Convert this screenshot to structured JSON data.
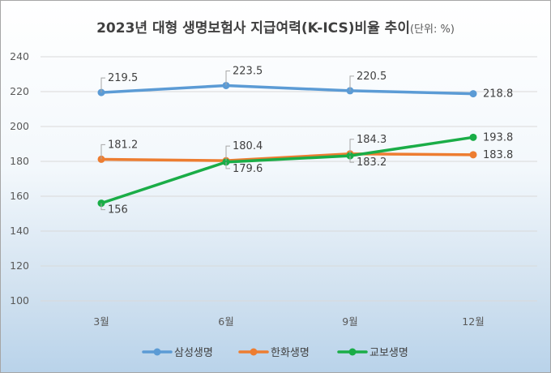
{
  "chart_data": {
    "type": "line",
    "title": "2023년 대형 생명보험사 지급여력(K-ICS)비율 추이",
    "title_unit": "(단위: %)",
    "categories": [
      "3월",
      "6월",
      "9월",
      "12월"
    ],
    "y_ticks": [
      "100",
      "120",
      "140",
      "160",
      "180",
      "200",
      "220",
      "240"
    ],
    "ylim": [
      100,
      240
    ],
    "grid": true,
    "legend_position": "bottom",
    "series": [
      {
        "name": "삼성생명",
        "color": "#5b9bd5",
        "values": [
          219.5,
          223.5,
          220.5,
          218.8
        ],
        "labels": [
          "219.5",
          "223.5",
          "220.5",
          "218.8"
        ]
      },
      {
        "name": "한화생명",
        "color": "#ed7d31",
        "values": [
          181.2,
          180.4,
          184.3,
          183.8
        ],
        "labels": [
          "181.2",
          "180.4",
          "184.3",
          "183.8"
        ]
      },
      {
        "name": "교보생명",
        "color": "#1aad47",
        "values": [
          156,
          179.6,
          183.2,
          193.8
        ],
        "labels": [
          "156",
          "179.6",
          "183.2",
          "193.8"
        ]
      }
    ]
  }
}
